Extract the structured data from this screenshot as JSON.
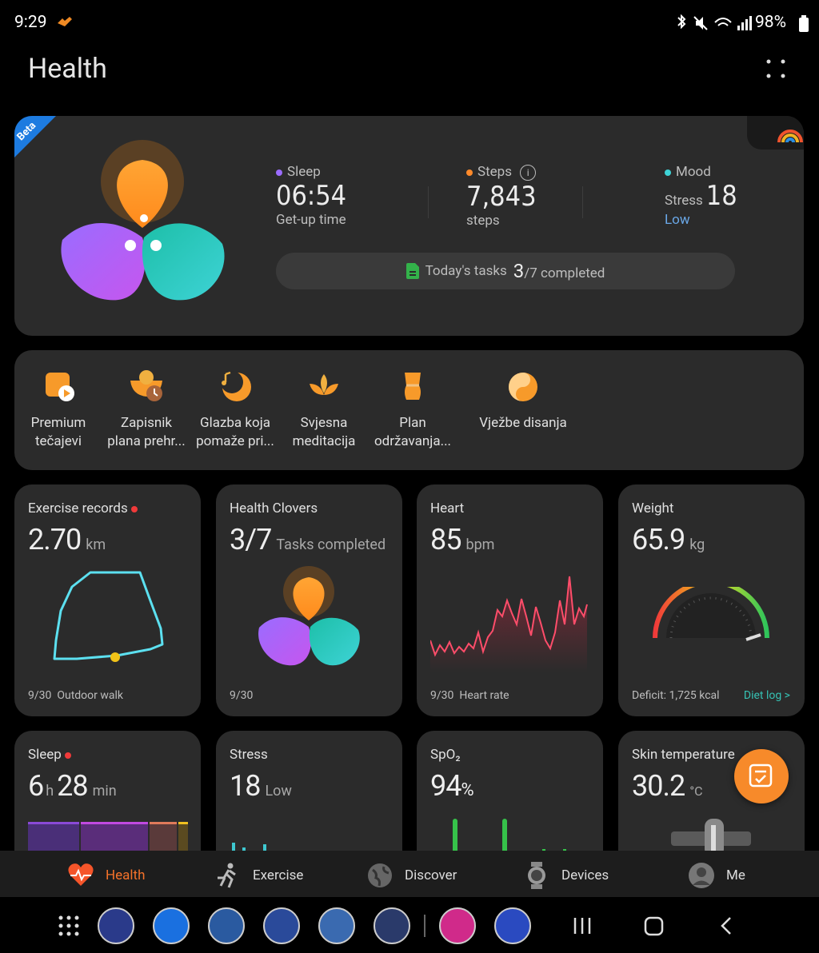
{
  "status_bar": {
    "time": "9:29",
    "battery": "98%"
  },
  "header": {
    "title": "Health"
  },
  "summary": {
    "badge": "Beta",
    "sleep": {
      "label": "Sleep",
      "value": "06:54",
      "sub": "Get-up time"
    },
    "steps": {
      "label": "Steps",
      "value": "7,843",
      "sub": "steps"
    },
    "mood": {
      "label": "Mood",
      "prefix": "Stress",
      "value": "18",
      "sub": "Low"
    },
    "tasks": {
      "label": "Today's tasks",
      "done": "3",
      "rest": "/7 completed"
    }
  },
  "shortcuts": [
    {
      "label": "Premium\ntečajevi"
    },
    {
      "label": "Zapisnik\nplana prehr..."
    },
    {
      "label": "Glazba koja\npomaže pri..."
    },
    {
      "label": "Svjesna\nmeditacija"
    },
    {
      "label": "Plan\nodržavanja..."
    },
    {
      "label": "Vježbe disanja"
    }
  ],
  "cards": {
    "exercise": {
      "title": "Exercise records",
      "value": "2.70",
      "unit": "km",
      "date": "9/30",
      "caption": "Outdoor walk"
    },
    "clovers": {
      "title": "Health Clovers",
      "value": "3/7",
      "unit": "Tasks completed",
      "date": "9/30"
    },
    "heart": {
      "title": "Heart",
      "value": "85",
      "unit": "bpm",
      "date": "9/30",
      "caption": "Heart rate"
    },
    "weight": {
      "title": "Weight",
      "value": "65.9",
      "unit": "kg",
      "caption": "Deficit: 1,725 kcal",
      "link": "Diet log >"
    },
    "sleep": {
      "title": "Sleep",
      "hours": "6",
      "hours_unit": "h",
      "minutes": "28",
      "minutes_unit": "min"
    },
    "stress": {
      "title": "Stress",
      "value": "18",
      "unit": "Low"
    },
    "spo2": {
      "title": "SpO₂",
      "value": "94",
      "unit": "%"
    },
    "skin": {
      "title": "Skin temperature",
      "value": "30.2",
      "unit": "°C"
    }
  },
  "nav": [
    {
      "label": "Health"
    },
    {
      "label": "Exercise"
    },
    {
      "label": "Discover"
    },
    {
      "label": "Devices"
    },
    {
      "label": "Me"
    }
  ]
}
